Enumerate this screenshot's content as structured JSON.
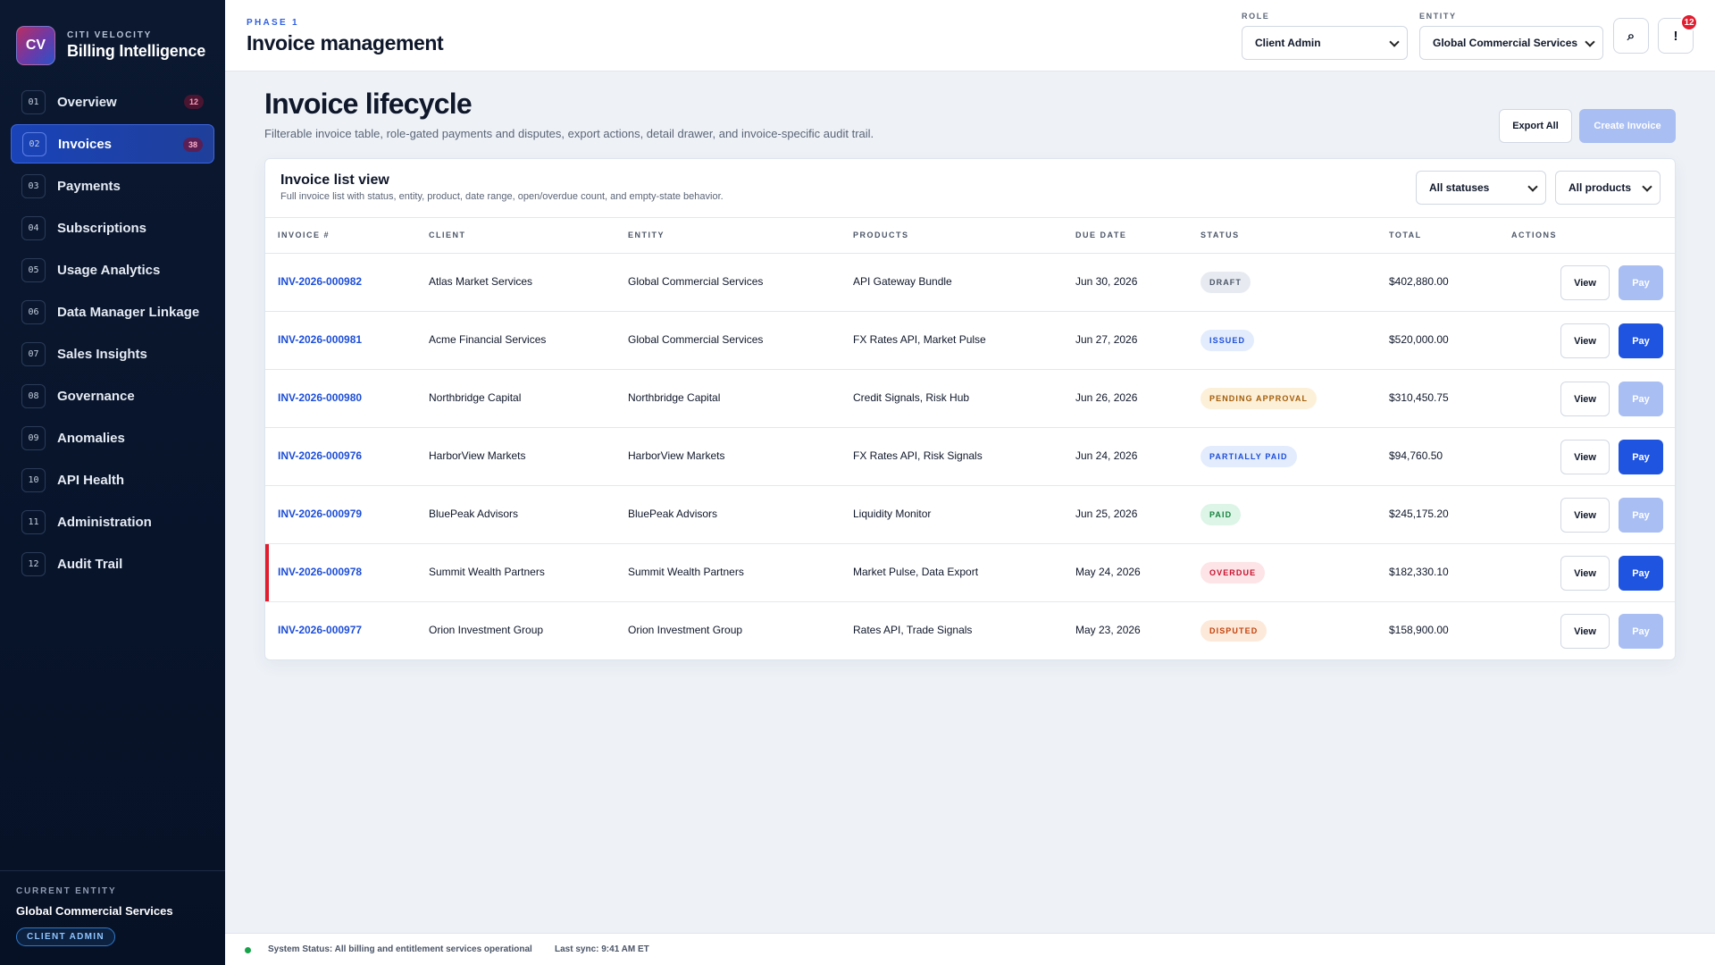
{
  "brand": {
    "logo": "CV",
    "eyebrow": "CITI VELOCITY",
    "name": "Billing Intelligence"
  },
  "nav": [
    {
      "num": "01",
      "label": "Overview",
      "badge": "12"
    },
    {
      "num": "02",
      "label": "Invoices",
      "badge": "38",
      "active": true
    },
    {
      "num": "03",
      "label": "Payments"
    },
    {
      "num": "04",
      "label": "Subscriptions"
    },
    {
      "num": "05",
      "label": "Usage Analytics"
    },
    {
      "num": "06",
      "label": "Data Manager Linkage"
    },
    {
      "num": "07",
      "label": "Sales Insights"
    },
    {
      "num": "08",
      "label": "Governance"
    },
    {
      "num": "09",
      "label": "Anomalies"
    },
    {
      "num": "10",
      "label": "API Health"
    },
    {
      "num": "11",
      "label": "Administration"
    },
    {
      "num": "12",
      "label": "Audit Trail"
    }
  ],
  "sidebar_footer": {
    "eyebrow": "CURRENT ENTITY",
    "entity": "Global Commercial Services",
    "role": "CLIENT ADMIN"
  },
  "topbar": {
    "phase": "PHASE 1",
    "title": "Invoice management",
    "role_label": "ROLE",
    "role_value": "Client Admin",
    "entity_label": "ENTITY",
    "entity_value": "Global Commercial Services",
    "search_icon": "⌕",
    "alert_icon": "!",
    "notification_count": "12"
  },
  "page": {
    "title": "Invoice lifecycle",
    "subtitle": "Filterable invoice table, role-gated payments and disputes, export actions, detail drawer, and invoice-specific audit trail.",
    "export_label": "Export All",
    "create_label": "Create Invoice"
  },
  "card": {
    "title": "Invoice list view",
    "subtitle": "Full invoice list with status, entity, product, date range, open/overdue count, and empty-state behavior.",
    "status_filter": "All statuses",
    "product_filter": "All products"
  },
  "table": {
    "columns": [
      "INVOICE #",
      "CLIENT",
      "ENTITY",
      "PRODUCTS",
      "DUE DATE",
      "STATUS",
      "TOTAL",
      "ACTIONS"
    ],
    "view_label": "View",
    "pay_label": "Pay",
    "rows": [
      {
        "invoice": "INV-2026-000982",
        "client": "Atlas Market Services",
        "entity": "Global Commercial Services",
        "products": "API Gateway Bundle",
        "due": "Jun 30, 2026",
        "status": "DRAFT",
        "status_key": "draft",
        "total": "$402,880.00",
        "pay_enabled": false
      },
      {
        "invoice": "INV-2026-000981",
        "client": "Acme Financial Services",
        "entity": "Global Commercial Services",
        "products": "FX Rates API, Market Pulse",
        "due": "Jun 27, 2026",
        "status": "ISSUED",
        "status_key": "issued",
        "total": "$520,000.00",
        "pay_enabled": true
      },
      {
        "invoice": "INV-2026-000980",
        "client": "Northbridge Capital",
        "entity": "Northbridge Capital",
        "products": "Credit Signals, Risk Hub",
        "due": "Jun 26, 2026",
        "status": "PENDING APPROVAL",
        "status_key": "pending",
        "total": "$310,450.75",
        "pay_enabled": false
      },
      {
        "invoice": "INV-2026-000976",
        "client": "HarborView Markets",
        "entity": "HarborView Markets",
        "products": "FX Rates API, Risk Signals",
        "due": "Jun 24, 2026",
        "status": "PARTIALLY PAID",
        "status_key": "partial",
        "total": "$94,760.50",
        "pay_enabled": true
      },
      {
        "invoice": "INV-2026-000979",
        "client": "BluePeak Advisors",
        "entity": "BluePeak Advisors",
        "products": "Liquidity Monitor",
        "due": "Jun 25, 2026",
        "status": "PAID",
        "status_key": "paid",
        "total": "$245,175.20",
        "pay_enabled": false
      },
      {
        "invoice": "INV-2026-000978",
        "client": "Summit Wealth Partners",
        "entity": "Summit Wealth Partners",
        "products": "Market Pulse, Data Export",
        "due": "May 24, 2026",
        "status": "OVERDUE",
        "status_key": "overdue",
        "total": "$182,330.10",
        "pay_enabled": true,
        "flagged": true
      },
      {
        "invoice": "INV-2026-000977",
        "client": "Orion Investment Group",
        "entity": "Orion Investment Group",
        "products": "Rates API, Trade Signals",
        "due": "May 23, 2026",
        "status": "DISPUTED",
        "status_key": "disputed",
        "total": "$158,900.00",
        "pay_enabled": false
      }
    ]
  },
  "status_colors": {
    "draft": {
      "bg": "#e7ebf1",
      "fg": "#4b5567"
    },
    "issued": {
      "bg": "#e3ecfd",
      "fg": "#1d4ed8"
    },
    "pending": {
      "bg": "#fdf0d9",
      "fg": "#a15c07"
    },
    "partial": {
      "bg": "#e3ecfd",
      "fg": "#1d4ed8"
    },
    "paid": {
      "bg": "#dcf5e6",
      "fg": "#15803d"
    },
    "overdue": {
      "bg": "#fde4e6",
      "fg": "#c8102e"
    },
    "disputed": {
      "bg": "#fde9d9",
      "fg": "#c2410c"
    }
  },
  "statusbar": {
    "system": "System Status: All billing and entitlement services operational",
    "sync": "Last sync: 9:41 AM ET"
  }
}
